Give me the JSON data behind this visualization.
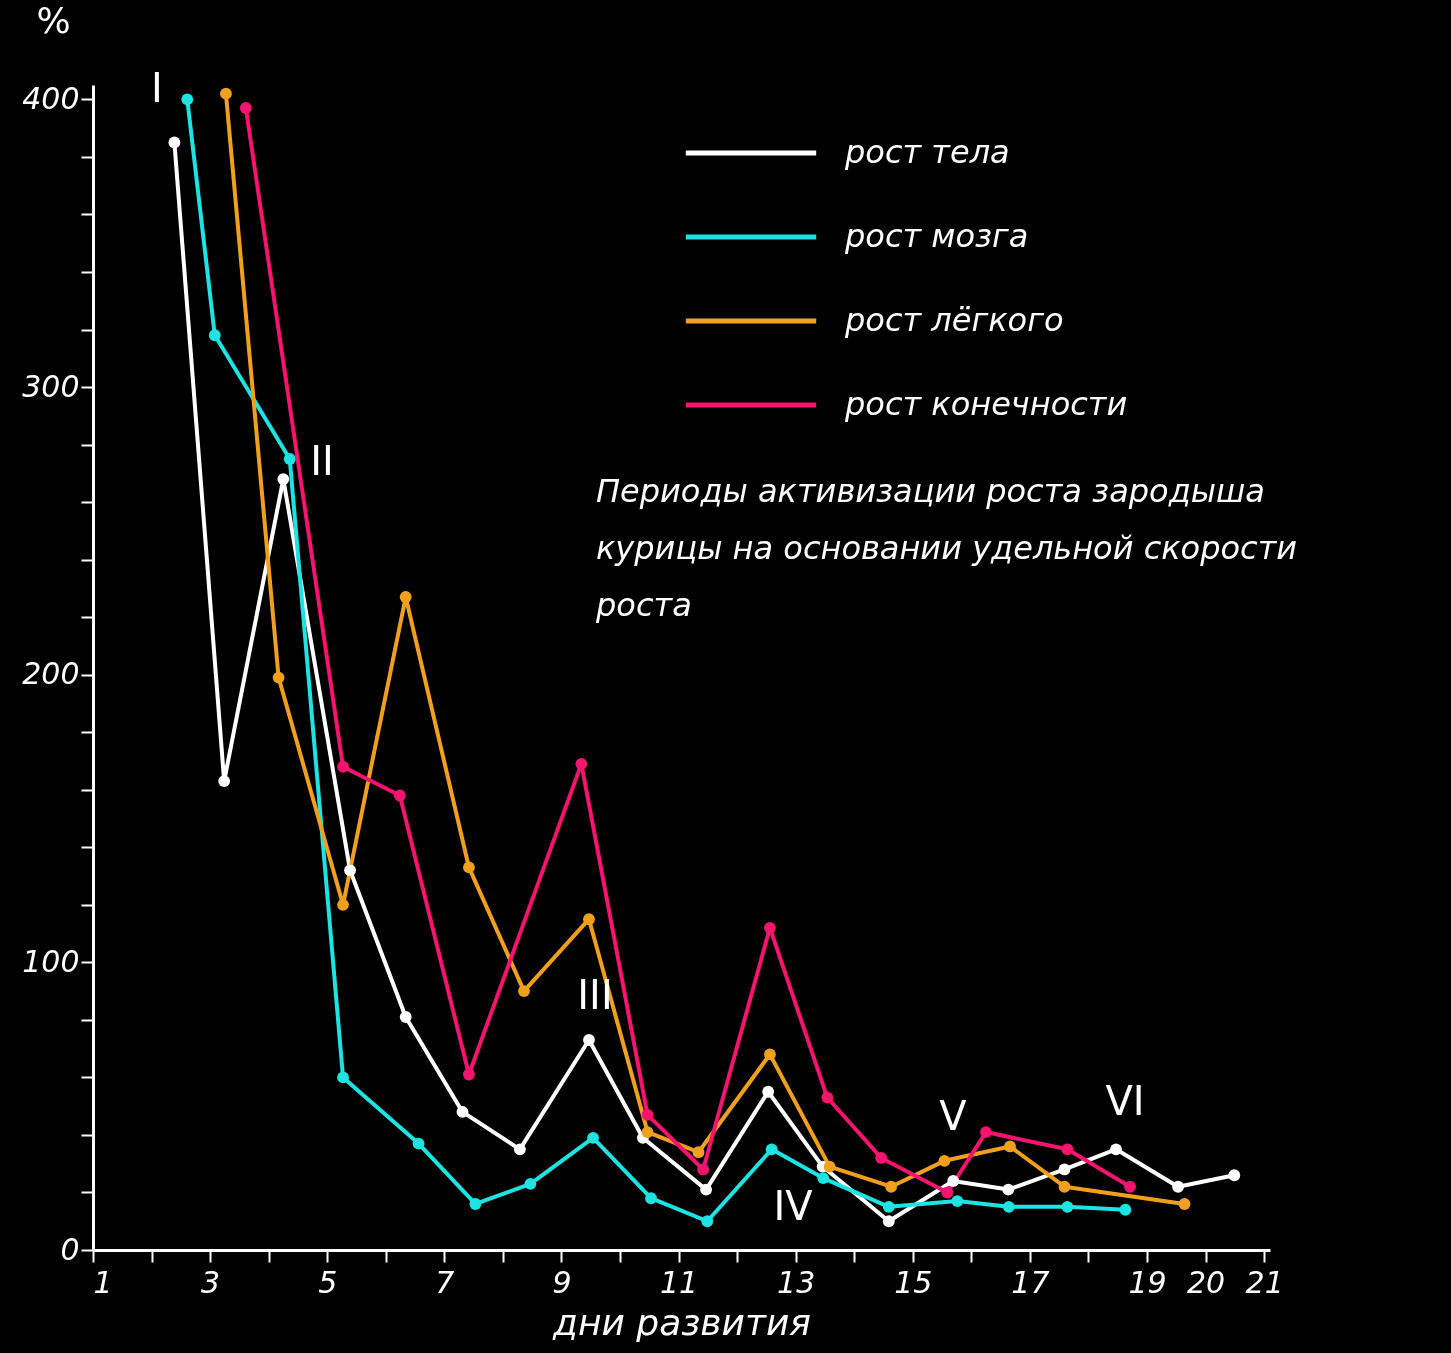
{
  "chart_data": {
    "type": "line",
    "xlabel": "дни развития",
    "ylabel": "%",
    "xlim": [
      1,
      21.1
    ],
    "ylim": [
      0,
      405
    ],
    "xticks": [
      1,
      {
        "value": 2,
        "label": null
      },
      3,
      {
        "value": 4,
        "label": null
      },
      5,
      {
        "value": 6,
        "label": null
      },
      7,
      {
        "value": 8,
        "label": null
      },
      9,
      {
        "value": 10,
        "label": null
      },
      11,
      {
        "value": 12,
        "label": null
      },
      13,
      {
        "value": 14,
        "label": null
      },
      15,
      {
        "value": 16,
        "label": null
      },
      17,
      {
        "value": 18,
        "label": null
      },
      19,
      20,
      21
    ],
    "yticks": [
      0,
      {
        "value": 20,
        "label": null
      },
      {
        "value": 40,
        "label": null
      },
      {
        "value": 60,
        "label": null
      },
      {
        "value": 80,
        "label": null
      },
      100,
      {
        "value": 120,
        "label": null
      },
      {
        "value": 140,
        "label": null
      },
      {
        "value": 160,
        "label": null
      },
      {
        "value": 180,
        "label": null
      },
      200,
      {
        "value": 220,
        "label": null
      },
      {
        "value": 240,
        "label": null
      },
      {
        "value": 260,
        "label": null
      },
      {
        "value": 280,
        "label": null
      },
      300,
      {
        "value": 320,
        "label": null
      },
      {
        "value": 340,
        "label": null
      },
      {
        "value": 360,
        "label": null
      },
      {
        "value": 380,
        "label": null
      },
      400
    ],
    "grid": false,
    "legend": "top right",
    "marker": "circle",
    "line_style": "solid",
    "series": [
      {
        "name": "рост тела",
        "color": "#ffffff",
        "x": [
          2.39,
          3.24,
          4.25,
          5.39,
          6.34,
          7.31,
          8.29,
          9.47,
          10.39,
          11.47,
          12.53,
          13.46,
          14.59,
          15.69,
          16.63,
          17.59,
          18.47,
          19.53,
          20.49
        ],
        "values": [
          385,
          163,
          268,
          132,
          81,
          48,
          35,
          73,
          39,
          21,
          55,
          29,
          10,
          24,
          21,
          28,
          35,
          22,
          26
        ]
      },
      {
        "name": "рост мозга",
        "color": "#1ee3e3",
        "x": [
          2.61,
          3.08,
          4.36,
          5.27,
          6.56,
          7.53,
          8.47,
          9.54,
          10.53,
          11.49,
          12.59,
          13.47,
          14.59,
          15.76,
          16.64,
          17.64,
          18.63
        ],
        "values": [
          400,
          318,
          275,
          60,
          37,
          16,
          23,
          39,
          18,
          10,
          35,
          25,
          15,
          17,
          15,
          15,
          14
        ]
      },
      {
        "name": "рост лёгкого",
        "color": "#f0a01e",
        "x": [
          3.27,
          4.17,
          5.27,
          6.34,
          7.42,
          8.36,
          9.47,
          10.47,
          11.34,
          12.56,
          13.58,
          14.63,
          15.54,
          16.66,
          17.59,
          19.64
        ],
        "values": [
          402,
          199,
          120,
          227,
          133,
          90,
          115,
          41,
          34,
          68,
          29,
          22,
          31,
          36,
          22,
          16
        ]
      },
      {
        "name": "рост конечности",
        "color": "#f5146e",
        "x": [
          3.61,
          5.27,
          6.24,
          7.42,
          9.34,
          10.47,
          11.42,
          12.56,
          13.54,
          14.46,
          15.59,
          16.25,
          17.64,
          18.71
        ],
        "values": [
          397,
          168,
          158,
          61,
          169,
          47,
          28,
          112,
          53,
          32,
          20,
          41,
          35,
          22
        ]
      }
    ],
    "annotations": [
      "I",
      "II",
      "III",
      "IV",
      "V",
      "VI",
      "Периоды активизации роста зародыша курицы на основании удельной скорости роста"
    ]
  }
}
